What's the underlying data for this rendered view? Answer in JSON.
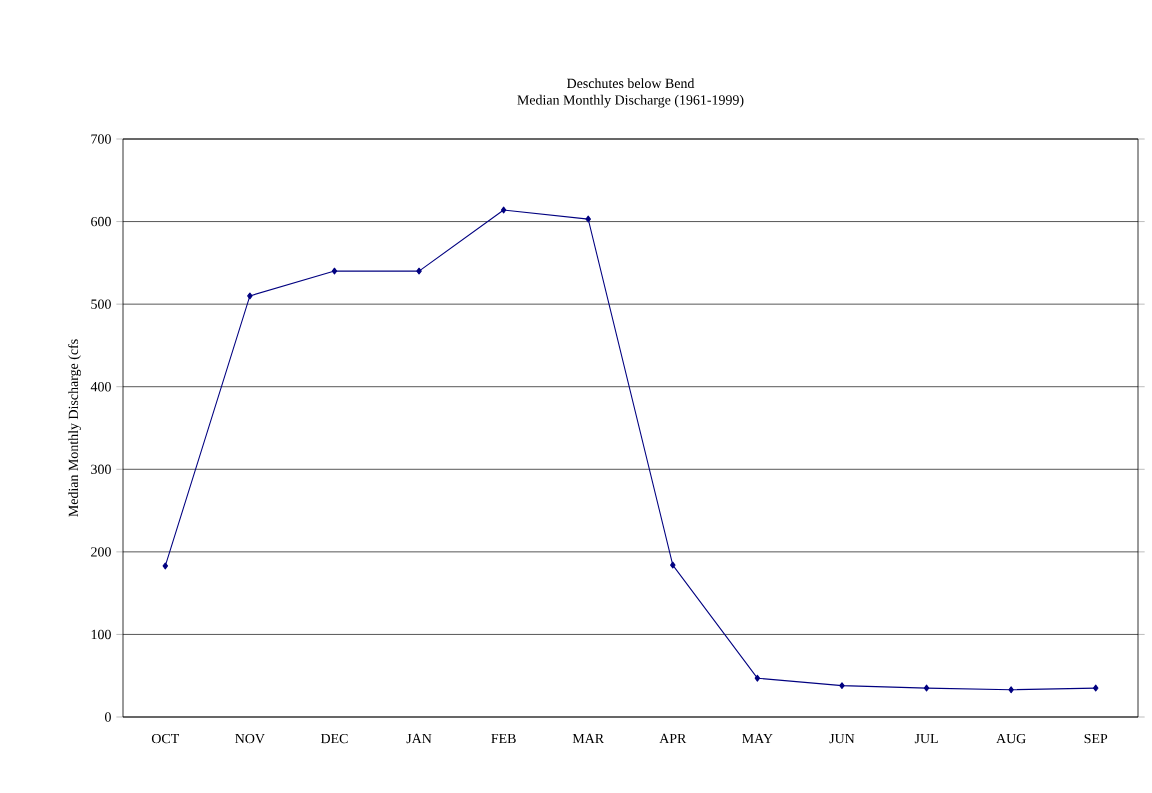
{
  "chart_data": {
    "type": "line",
    "title": "Deschutes below Bend",
    "subtitle": "Median Monthly Discharge (1961-1999)",
    "ylabel": "Median Monthly Discharge (cfs",
    "categories": [
      "OCT",
      "NOV",
      "DEC",
      "JAN",
      "FEB",
      "MAR",
      "APR",
      "MAY",
      "JUN",
      "JUL",
      "AUG",
      "SEP"
    ],
    "series": [
      {
        "color": "#000080",
        "values": [
          183,
          510,
          540,
          540,
          614,
          603,
          184,
          47,
          38,
          35,
          33,
          35
        ]
      }
    ],
    "ylim": [
      0,
      700
    ],
    "yticks": [
      0,
      100,
      200,
      300,
      400,
      500,
      600,
      700
    ],
    "grid": "y",
    "marker": "diamond"
  }
}
